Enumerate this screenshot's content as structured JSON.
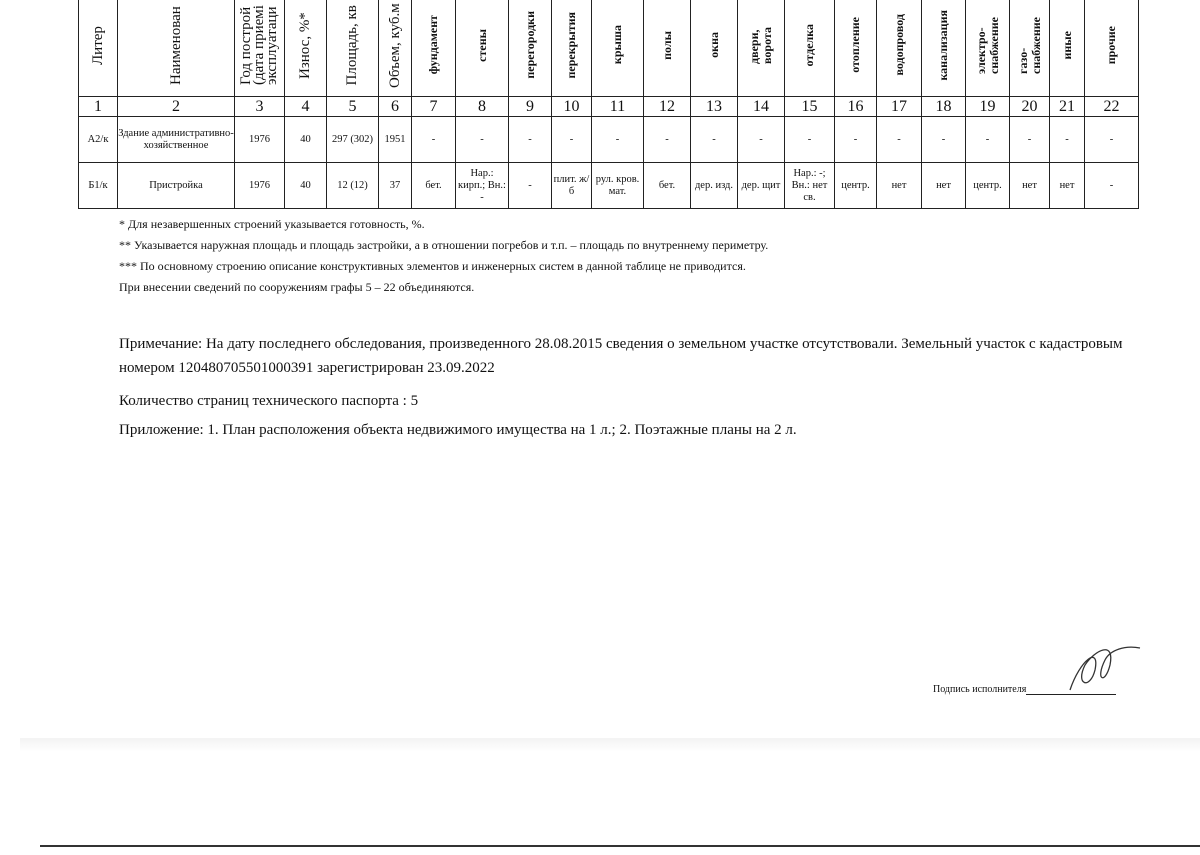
{
  "table": {
    "headers": [
      "Литер",
      "Наименован",
      "Год построй\n(дата приемі\nэксплуатаци",
      "Износ, %*",
      "Площадь, кв",
      "Объем, куб.м",
      "фундамент",
      "стены",
      "перегородки",
      "перекрытия",
      "крыша",
      "полы",
      "окна",
      "двери,\nворота",
      "отделка",
      "отопление",
      "водопровод",
      "канализация",
      "электро-\nснабжение",
      "газо-\nснабжение",
      "иные",
      "прочие"
    ],
    "numbers": [
      "1",
      "2",
      "3",
      "4",
      "5",
      "6",
      "7",
      "8",
      "9",
      "10",
      "11",
      "12",
      "13",
      "14",
      "15",
      "16",
      "17",
      "18",
      "19",
      "20",
      "21",
      "22"
    ],
    "rows": [
      [
        "А2/к",
        "Здание административно-хозяйственное",
        "1976",
        "40",
        "297 (302)",
        "1951",
        "-",
        "-",
        "-",
        "-",
        "-",
        "-",
        "-",
        "-",
        "-",
        "-",
        "-",
        "-",
        "-",
        "-",
        "-",
        "-"
      ],
      [
        "Б1/к",
        "Пристройка",
        "1976",
        "40",
        "12 (12)",
        "37",
        "бет.",
        "Нар.: кирп.; Вн.: -",
        "-",
        "плит. ж/б",
        "рул. кров. мат.",
        "бет.",
        "дер. изд.",
        "дер. щит",
        "Нар.: -; Вн.: нет св.",
        "центр.",
        "нет",
        "нет",
        "центр.",
        "нет",
        "нет",
        "-"
      ]
    ]
  },
  "footnotes": [
    "* Для незавершенных строений указывается готовность, %.",
    "** Указывается наружная площадь и площадь застройки, а в отношении погребов и т.п. – площадь по внутреннему периметру.",
    "*** По основному строению описание конструктивных элементов и инженерных систем в данной таблице не приводится.",
    "При внесении сведений по сооружениям  графы 5 – 22 объединяются."
  ],
  "note": "Примечание: На дату последнего обследования, произведенного 28.08.2015 сведения о земельном участке отсутствовали. Земельный участок с кадастровым номером 120480705501000391 зарегистрирован 23.09.2022",
  "pages": "Количество страниц технического паспорта : 5",
  "appendix": "Приложение: 1. План расположения объекта недвижимого имущества на 1 л.; 2. Поэтажные планы на 2 л.",
  "signature_label": "Подпись исполнителя"
}
